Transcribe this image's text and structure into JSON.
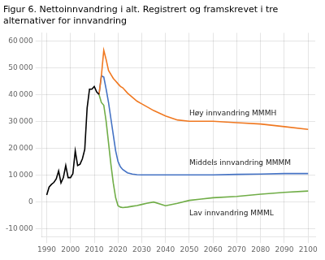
{
  "chart_data": {
    "type": "line",
    "title": "Figur 6. Nettoinnvandring i alt. Registrert og framskrevet i tre\nalternativer for innvandring",
    "xlim": [
      1988,
      2103
    ],
    "ylim": [
      -13000,
      63000
    ],
    "xticks": [
      1990,
      2000,
      2010,
      2020,
      2030,
      2040,
      2050,
      2060,
      2070,
      2080,
      2090,
      2100
    ],
    "yticks": [
      {
        "value": -10000,
        "label": "-10 000"
      },
      0,
      {
        "value": 10000,
        "label": "10 000"
      },
      {
        "value": 20000,
        "label": "20 000"
      },
      {
        "value": 30000,
        "label": "30 000"
      },
      {
        "value": 40000,
        "label": "40 000"
      },
      {
        "value": 50000,
        "label": "50 000"
      },
      {
        "value": 60000,
        "label": "60 000"
      }
    ],
    "grid": true,
    "series": [
      {
        "color": "#000000",
        "x": [
          1990,
          1991,
          1992,
          1993,
          1994,
          1995,
          1996,
          1997,
          1998,
          1999,
          2000,
          2001,
          2002,
          2003,
          2004,
          2005,
          2006,
          2007,
          2008,
          2009,
          2010,
          2011,
          2012
        ],
        "values": [
          2500,
          5500,
          6500,
          7200,
          8500,
          11500,
          7000,
          9000,
          13500,
          9000,
          9000,
          10500,
          19000,
          13500,
          14000,
          16000,
          19500,
          35000,
          42000,
          42000,
          43000,
          41000,
          40000
        ]
      },
      {
        "color": "#f07820",
        "x": [
          2012,
          2013,
          2014,
          2015,
          2016,
          2017,
          2018,
          2019,
          2020,
          2021,
          2022,
          2024,
          2026,
          2028,
          2030,
          2032,
          2035,
          2040,
          2045,
          2050,
          2055,
          2060,
          2070,
          2080,
          2090,
          2100
        ],
        "values": [
          40000,
          47000,
          56500,
          53000,
          49000,
          47500,
          46000,
          45000,
          44000,
          43000,
          42500,
          40500,
          39000,
          37500,
          36500,
          35500,
          34000,
          32000,
          30500,
          30000,
          30000,
          30000,
          29500,
          29000,
          28000,
          27000
        ]
      },
      {
        "color": "#4472c4",
        "x": [
          2012,
          2013,
          2014,
          2015,
          2016,
          2017,
          2018,
          2019,
          2020,
          2021,
          2022,
          2024,
          2026,
          2028,
          2030,
          2032,
          2035,
          2040,
          2045,
          2050,
          2055,
          2060,
          2070,
          2080,
          2090,
          2100
        ],
        "values": [
          40000,
          47000,
          46500,
          42000,
          37000,
          31000,
          25000,
          19000,
          15000,
          13000,
          12000,
          10800,
          10300,
          10100,
          10000,
          10000,
          10000,
          10000,
          10000,
          10000,
          10000,
          10000,
          10200,
          10300,
          10500,
          10500
        ]
      },
      {
        "color": "#70ad47",
        "x": [
          2012,
          2013,
          2014,
          2015,
          2016,
          2017,
          2018,
          2019,
          2020,
          2021,
          2022,
          2024,
          2026,
          2028,
          2030,
          2032,
          2035,
          2040,
          2045,
          2050,
          2055,
          2060,
          2070,
          2080,
          2090,
          2100
        ],
        "values": [
          40000,
          37000,
          36000,
          30000,
          22000,
          14000,
          7000,
          1500,
          -1500,
          -2000,
          -2200,
          -2000,
          -1700,
          -1400,
          -1000,
          -600,
          -100,
          -1500,
          -600,
          500,
          1000,
          1500,
          2000,
          2800,
          3500,
          4000
        ]
      }
    ],
    "annotations": [
      {
        "text": "Høy innvandring MMMH",
        "x": 2050,
        "y": 33000
      },
      {
        "text": "Middels innvandring MMMM",
        "x": 2050,
        "y": 14500
      },
      {
        "text": "Lav innvandring MMML",
        "x": 2050,
        "y": -4500
      }
    ]
  }
}
